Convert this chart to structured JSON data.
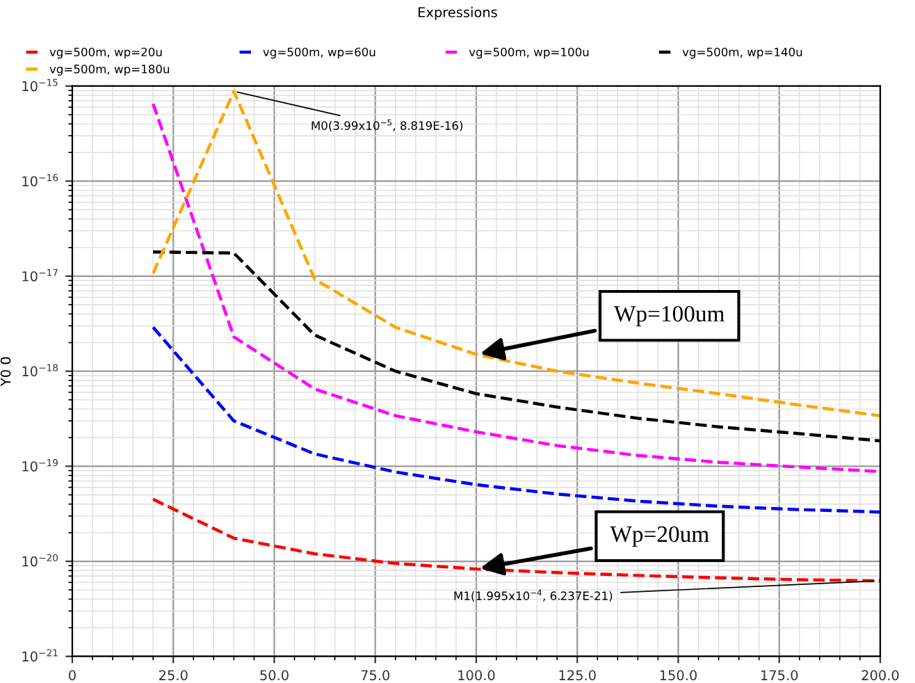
{
  "chart_data": {
    "type": "line",
    "title": "Expressions",
    "ylabel": "Y0 0",
    "x": [
      20,
      40,
      60,
      80,
      100,
      120,
      140,
      160,
      180,
      200
    ],
    "series": [
      {
        "name": "vg=500m, wp=20u",
        "color": "#ff0000",
        "values": [
          4.5e-20,
          1.75e-20,
          1.2e-20,
          9.5e-21,
          8.3e-21,
          7.6e-21,
          7.1e-21,
          6.7e-21,
          6.4e-21,
          6.237e-21
        ]
      },
      {
        "name": "vg=500m, wp=60u",
        "color": "#0000ff",
        "values": [
          2.9e-18,
          3e-19,
          1.35e-19,
          8.7e-20,
          6.4e-20,
          5.1e-20,
          4.3e-20,
          3.8e-20,
          3.5e-20,
          3.3e-20
        ]
      },
      {
        "name": "vg=500m, wp=100u",
        "color": "#ff00ff",
        "values": [
          6.5e-16,
          2.3e-18,
          6.5e-19,
          3.4e-19,
          2.3e-19,
          1.65e-19,
          1.3e-19,
          1.1e-19,
          9.8e-20,
          8.8e-20
        ]
      },
      {
        "name": "vg=500m, wp=140u",
        "color": "#000000",
        "values": [
          1.8e-17,
          1.75e-17,
          2.4e-18,
          1e-18,
          5.8e-19,
          4.2e-19,
          3.2e-19,
          2.6e-19,
          2.2e-19,
          1.85e-19
        ]
      },
      {
        "name": "vg=500m, wp=180u",
        "color": "#ffa500",
        "values": [
          1.07e-17,
          8.819e-16,
          9.3e-18,
          2.9e-18,
          1.5e-18,
          1e-18,
          7.5e-19,
          5.8e-19,
          4.4e-19,
          3.4e-19
        ]
      }
    ],
    "line_style": "dashed",
    "marker": "none",
    "log": "y",
    "grid": true,
    "legend": "top",
    "xlim": [
      0,
      200
    ],
    "xticks": [
      0,
      {
        "value": 25,
        "label": "25.0"
      },
      {
        "value": 50,
        "label": "50.0"
      },
      {
        "value": 75,
        "label": "75.0"
      },
      {
        "value": 100,
        "label": "100.0"
      },
      {
        "value": 125,
        "label": "125.0"
      },
      {
        "value": 150,
        "label": "150.0"
      },
      {
        "value": 175,
        "label": "175.0"
      },
      {
        "value": 200,
        "label": "200.0"
      }
    ],
    "ylim": [
      1e-21,
      1e-15
    ],
    "yticks": [
      {
        "value": 1e-21,
        "label": "10$^{−21}$"
      },
      {
        "value": 1e-20,
        "label": "10$^{−20}$"
      },
      {
        "value": 1e-19,
        "label": "10$^{−19}$"
      },
      {
        "value": 1e-18,
        "label": "10$^{−18}$"
      },
      {
        "value": 1e-17,
        "label": "10$^{−17}$"
      },
      {
        "value": 1e-16,
        "label": "10$^{−16}$"
      },
      {
        "value": 1e-15,
        "label": "10$^{−15}$"
      }
    ],
    "annotations": [
      {
        "text": "M0(3.99x10$^{−5}$, 8.819E-16)",
        "x": 39.9,
        "y": 8.819e-16
      },
      {
        "text": "M1(1.995x10$^{−4}$, 6.237E-21)",
        "x": 199.5,
        "y": 6.237e-21
      },
      {
        "text": "Wp=100um",
        "x": 100,
        "y": 1.5e-18
      },
      {
        "text": "Wp=20um",
        "x": 100,
        "y": 8.3e-21
      }
    ]
  }
}
